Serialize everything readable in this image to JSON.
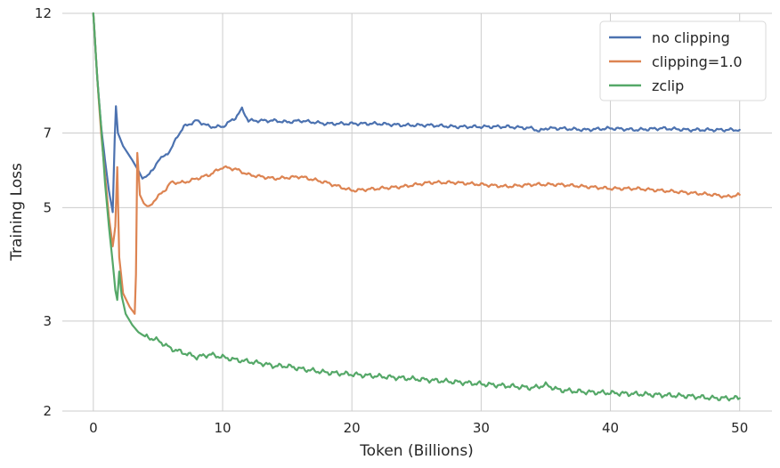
{
  "chart_data": {
    "type": "line",
    "xlabel": "Token (Billions)",
    "ylabel": "Training Loss",
    "xlim": [
      -2.4,
      52.5
    ],
    "ylim": [
      2,
      12
    ],
    "yscale": "log",
    "xticks": [
      0,
      10,
      20,
      30,
      40,
      50
    ],
    "yticks": [
      2,
      3,
      5,
      7,
      12
    ],
    "xtick_labels": [
      "0",
      "10",
      "20",
      "30",
      "40",
      "50"
    ],
    "ytick_labels": [
      "2",
      "3",
      "5",
      "7",
      "12"
    ],
    "grid": true,
    "legend_position": "top-right",
    "series": [
      {
        "name": "no clipping",
        "color": "#4c72b0",
        "x": [
          0,
          0.3,
          0.6,
          0.9,
          1.2,
          1.5,
          1.65,
          1.75,
          1.9,
          2.3,
          3.0,
          3.5,
          3.8,
          4.2,
          4.6,
          5.0,
          5.5,
          6.0,
          6.5,
          7.0,
          7.5,
          8.0,
          8.5,
          9.0,
          10.0,
          11.0,
          11.5,
          12.0,
          13.0,
          14.0,
          15.0,
          16.0,
          17.0,
          18.0,
          20.0,
          22.0,
          24.0,
          26.0,
          28.0,
          30.0,
          32.0,
          34.0,
          34.5,
          35.0,
          36.0,
          38.0,
          40.0,
          42.0,
          44.0,
          46.0,
          48.0,
          50.0
        ],
        "y": [
          12.0,
          9.0,
          7.2,
          6.2,
          5.4,
          4.9,
          6.8,
          7.9,
          7.0,
          6.6,
          6.2,
          5.9,
          5.7,
          5.8,
          5.9,
          6.2,
          6.3,
          6.5,
          6.9,
          7.2,
          7.3,
          7.4,
          7.3,
          7.2,
          7.2,
          7.5,
          7.8,
          7.4,
          7.4,
          7.4,
          7.35,
          7.4,
          7.35,
          7.3,
          7.3,
          7.3,
          7.25,
          7.25,
          7.2,
          7.2,
          7.2,
          7.15,
          7.05,
          7.15,
          7.15,
          7.1,
          7.15,
          7.1,
          7.15,
          7.1,
          7.1,
          7.1
        ]
      },
      {
        "name": "clipping=1.0",
        "color": "#dd8452",
        "x": [
          0,
          0.3,
          0.6,
          0.9,
          1.2,
          1.5,
          1.7,
          1.85,
          2.0,
          2.3,
          2.8,
          3.2,
          3.3,
          3.4,
          3.6,
          3.9,
          4.3,
          4.8,
          5.5,
          6.0,
          7.0,
          8.0,
          9.0,
          10.0,
          11.0,
          12.0,
          14.0,
          16.0,
          18.0,
          20.0,
          22.0,
          24.0,
          26.0,
          28.0,
          30.0,
          32.0,
          34.0,
          36.0,
          38.0,
          40.0,
          42.0,
          44.0,
          46.0,
          48.0,
          49.0,
          50.0
        ],
        "y": [
          12.0,
          9.0,
          7.0,
          5.8,
          4.8,
          4.2,
          4.6,
          6.0,
          4.0,
          3.4,
          3.2,
          3.1,
          3.7,
          6.4,
          5.3,
          5.1,
          5.0,
          5.2,
          5.4,
          5.6,
          5.6,
          5.7,
          5.8,
          6.0,
          5.95,
          5.8,
          5.7,
          5.75,
          5.6,
          5.4,
          5.45,
          5.5,
          5.6,
          5.6,
          5.55,
          5.5,
          5.55,
          5.55,
          5.5,
          5.45,
          5.45,
          5.4,
          5.35,
          5.3,
          5.25,
          5.3
        ]
      },
      {
        "name": "zclip",
        "color": "#55a868",
        "x": [
          0,
          0.3,
          0.6,
          0.9,
          1.2,
          1.5,
          1.7,
          1.85,
          2.0,
          2.2,
          2.5,
          3.0,
          3.5,
          4.0,
          5.0,
          6.0,
          7.0,
          8.0,
          9.0,
          10.0,
          11.0,
          12.0,
          13.0,
          14.0,
          15.0,
          16.0,
          17.0,
          18.0,
          20.0,
          22.0,
          24.0,
          26.0,
          28.0,
          30.0,
          32.0,
          34.0,
          35.0,
          36.0,
          38.0,
          40.0,
          42.0,
          44.0,
          46.0,
          48.0,
          50.0
        ],
        "y": [
          12.0,
          9.0,
          7.2,
          5.6,
          4.6,
          3.9,
          3.45,
          3.3,
          3.75,
          3.35,
          3.1,
          2.95,
          2.85,
          2.8,
          2.75,
          2.65,
          2.6,
          2.55,
          2.58,
          2.55,
          2.52,
          2.5,
          2.48,
          2.45,
          2.45,
          2.42,
          2.4,
          2.38,
          2.36,
          2.34,
          2.32,
          2.3,
          2.28,
          2.26,
          2.24,
          2.22,
          2.25,
          2.2,
          2.18,
          2.17,
          2.16,
          2.15,
          2.14,
          2.12,
          2.12
        ]
      }
    ]
  }
}
